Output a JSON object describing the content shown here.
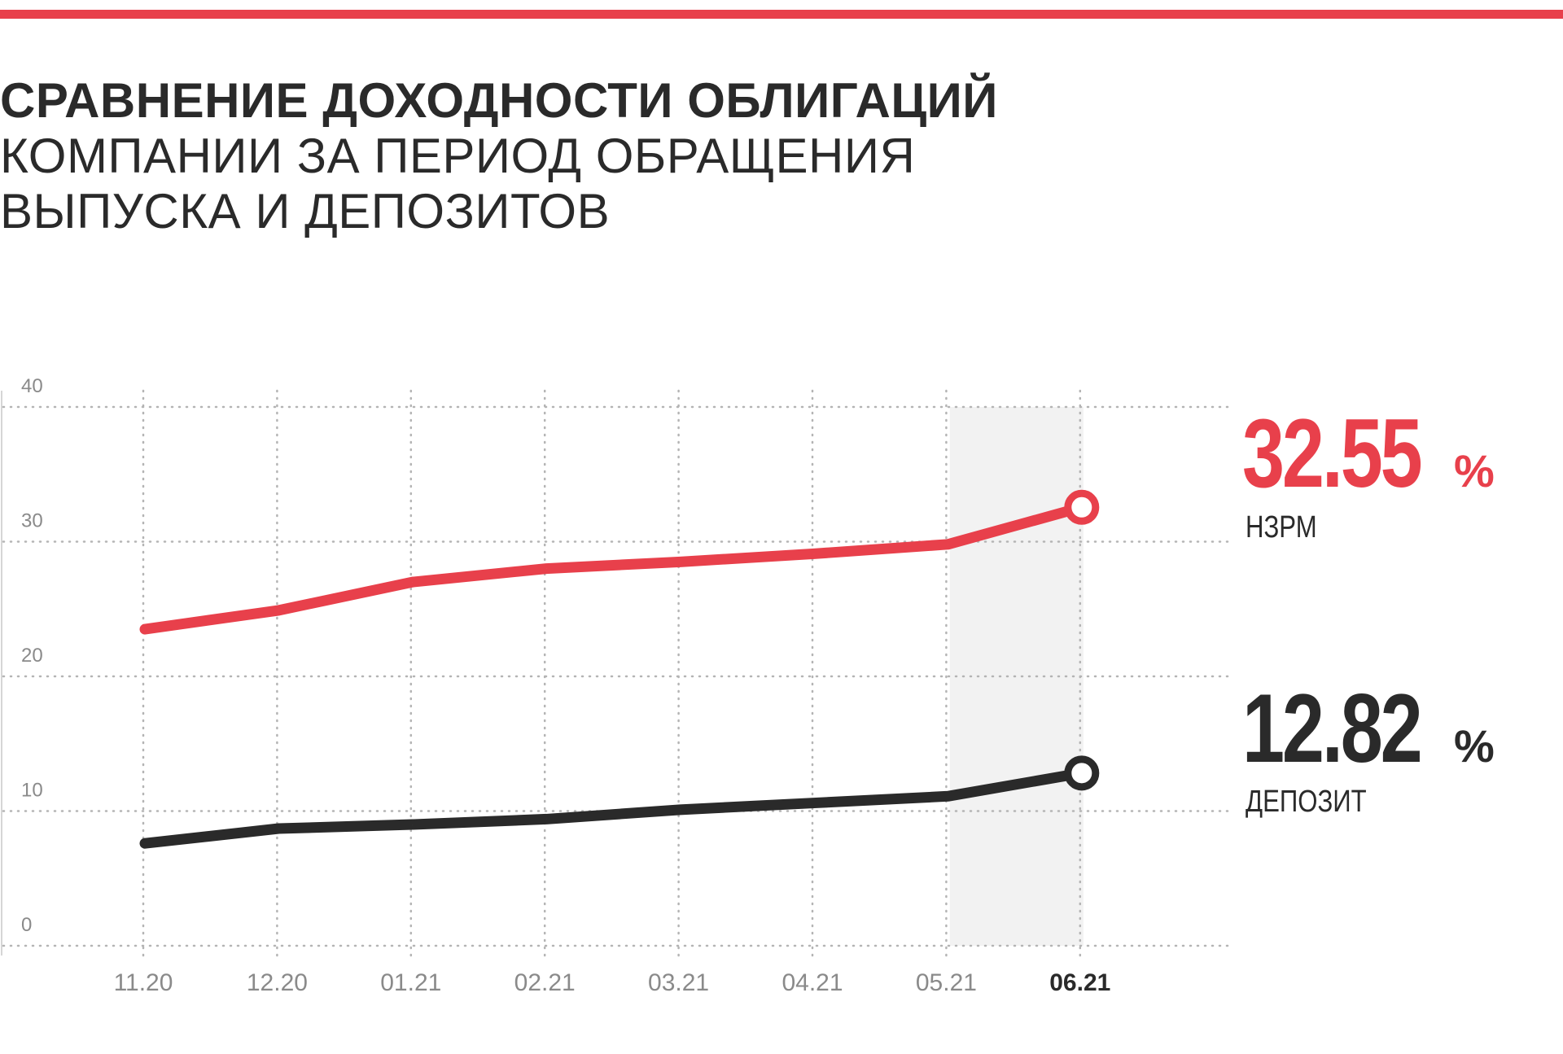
{
  "title": {
    "line1": "СРАВНЕНИЕ ДОХОДНОСТИ ОБЛИГАЦИЙ",
    "line2": "КОМПАНИИ ЗА ПЕРИОД ОБРАЩЕНИЯ",
    "line3": "ВЫПУСКА И ДЕПОЗИТОВ"
  },
  "colors": {
    "accent": "#e8404b",
    "dark": "#2a2a2a",
    "grid": "#b4b4b4",
    "tick": "#8a8a8a",
    "highlight": "#f2f2f2"
  },
  "chart_data": {
    "type": "line",
    "categories": [
      "11.20",
      "12.20",
      "01.21",
      "02.21",
      "03.21",
      "04.21",
      "05.21",
      "06.21"
    ],
    "highlighted_category": "06.21",
    "ylim": [
      0,
      40
    ],
    "yticks": [
      0,
      10,
      20,
      30,
      40
    ],
    "grid": true,
    "series": [
      {
        "name": "НЗРМ",
        "color": "#e8404b",
        "values": [
          23.5,
          24.9,
          27.0,
          28.0,
          28.5,
          29.1,
          29.8,
          32.55
        ],
        "end_label": {
          "number": "32.55",
          "unit": "%"
        }
      },
      {
        "name": "ДЕПОЗИТ",
        "color": "#2a2a2a",
        "values": [
          7.6,
          8.7,
          9.0,
          9.4,
          10.1,
          10.6,
          11.1,
          12.82
        ],
        "end_label": {
          "number": "12.82",
          "unit": "%"
        }
      }
    ]
  }
}
